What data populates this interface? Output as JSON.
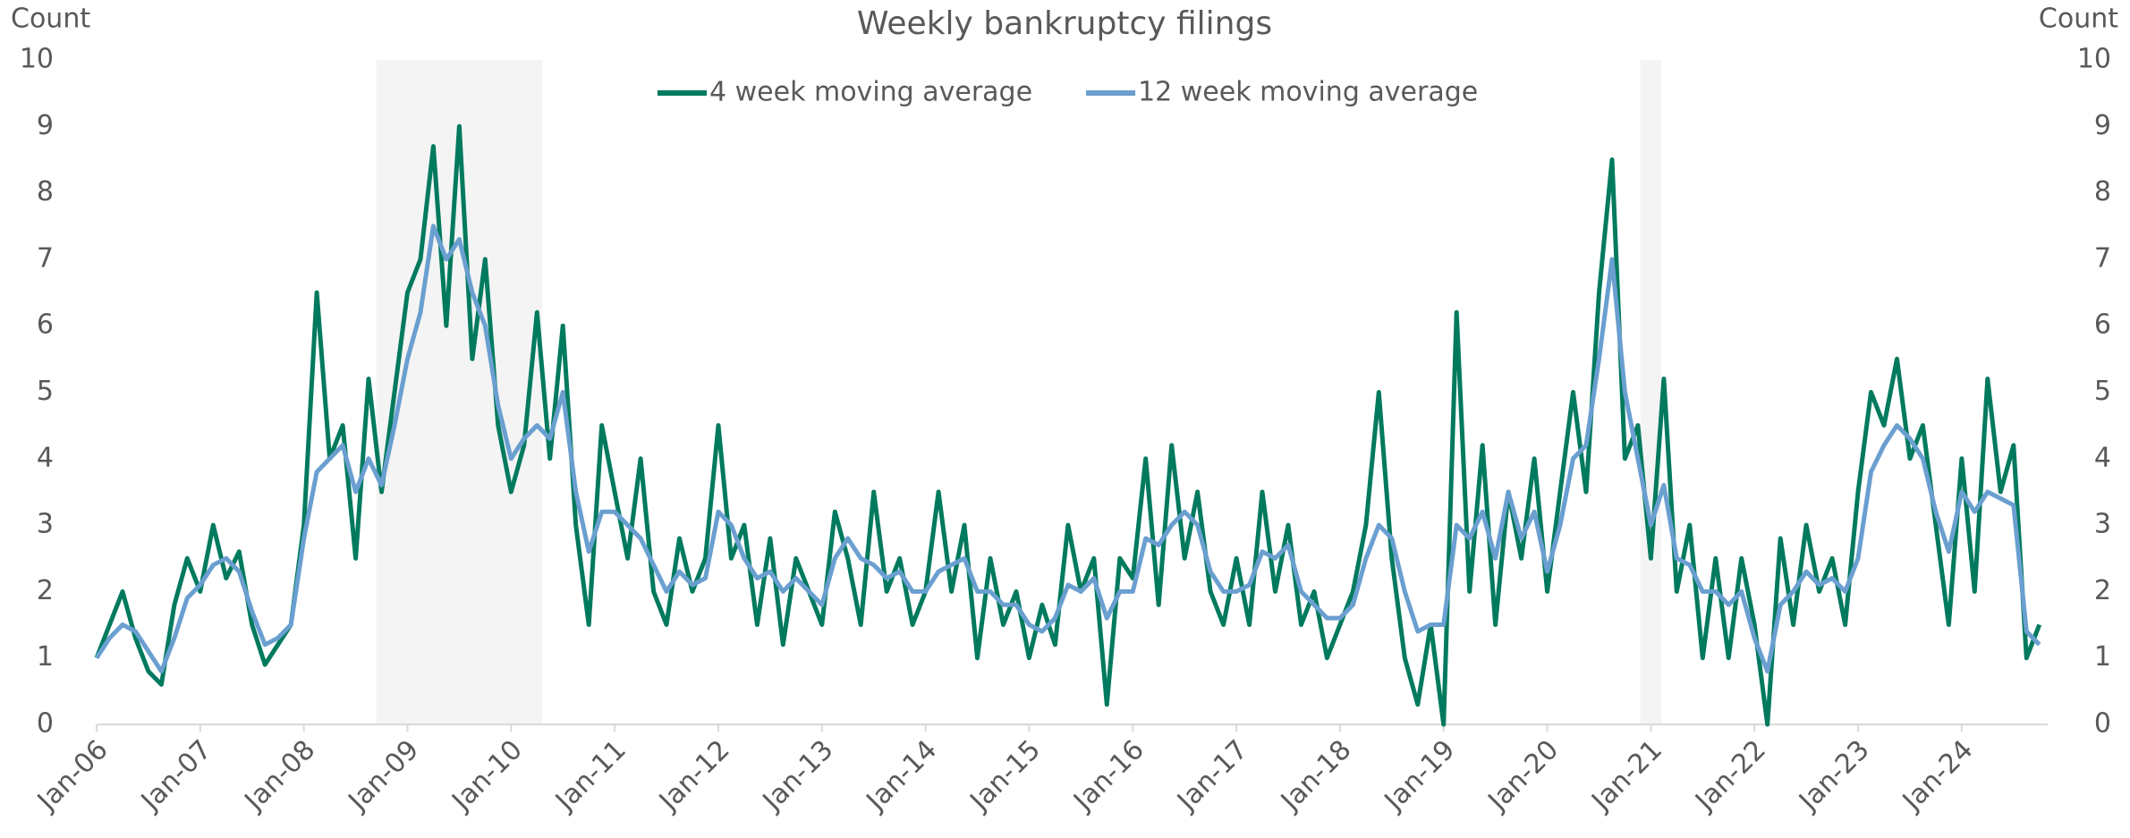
{
  "chart_data": {
    "type": "line",
    "title": "Weekly bankruptcy filings",
    "y_label": "Count",
    "y2_label": "Count",
    "xlim": [
      2006,
      2024.83
    ],
    "xticks": [
      {
        "value": 2006,
        "label": "Jan-06"
      },
      {
        "value": 2007,
        "label": "Jan-07"
      },
      {
        "value": 2008,
        "label": "Jan-08"
      },
      {
        "value": 2009,
        "label": "Jan-09"
      },
      {
        "value": 2010,
        "label": "Jan-10"
      },
      {
        "value": 2011,
        "label": "Jan-11"
      },
      {
        "value": 2012,
        "label": "Jan-12"
      },
      {
        "value": 2013,
        "label": "Jan-13"
      },
      {
        "value": 2014,
        "label": "Jan-14"
      },
      {
        "value": 2015,
        "label": "Jan-15"
      },
      {
        "value": 2016,
        "label": "Jan-16"
      },
      {
        "value": 2017,
        "label": "Jan-17"
      },
      {
        "value": 2018,
        "label": "Jan-18"
      },
      {
        "value": 2019,
        "label": "Jan-19"
      },
      {
        "value": 2020,
        "label": "Jan-20"
      },
      {
        "value": 2021,
        "label": "Jan-21"
      },
      {
        "value": 2022,
        "label": "Jan-22"
      },
      {
        "value": 2023,
        "label": "Jan-23"
      },
      {
        "value": 2024,
        "label": "Jan-24"
      }
    ],
    "ylim": [
      0,
      10
    ],
    "yticks": [
      0,
      1,
      2,
      3,
      4,
      5,
      6,
      7,
      8,
      9,
      10
    ],
    "y2lim": [
      0,
      10
    ],
    "y2ticks": [
      0,
      1,
      2,
      3,
      4,
      5,
      6,
      7,
      8,
      9,
      10
    ],
    "grid": false,
    "legend": "top",
    "shaded_regions": [
      [
        2008.7,
        2010.3
      ],
      [
        2020.9,
        2021.1
      ]
    ],
    "x": [
      2006,
      2006.125,
      2006.25,
      2006.375,
      2006.5,
      2006.625,
      2006.75,
      2006.875,
      2007,
      2007.125,
      2007.25,
      2007.375,
      2007.5,
      2007.625,
      2007.75,
      2007.875,
      2008,
      2008.125,
      2008.25,
      2008.375,
      2008.5,
      2008.625,
      2008.75,
      2008.875,
      2009,
      2009.125,
      2009.25,
      2009.375,
      2009.5,
      2009.625,
      2009.75,
      2009.875,
      2010,
      2010.125,
      2010.25,
      2010.375,
      2010.5,
      2010.625,
      2010.75,
      2010.875,
      2011,
      2011.125,
      2011.25,
      2011.375,
      2011.5,
      2011.625,
      2011.75,
      2011.875,
      2012,
      2012.125,
      2012.25,
      2012.375,
      2012.5,
      2012.625,
      2012.75,
      2012.875,
      2013,
      2013.125,
      2013.25,
      2013.375,
      2013.5,
      2013.625,
      2013.75,
      2013.875,
      2014,
      2014.125,
      2014.25,
      2014.375,
      2014.5,
      2014.625,
      2014.75,
      2014.875,
      2015,
      2015.125,
      2015.25,
      2015.375,
      2015.5,
      2015.625,
      2015.75,
      2015.875,
      2016,
      2016.125,
      2016.25,
      2016.375,
      2016.5,
      2016.625,
      2016.75,
      2016.875,
      2017,
      2017.125,
      2017.25,
      2017.375,
      2017.5,
      2017.625,
      2017.75,
      2017.875,
      2018,
      2018.125,
      2018.25,
      2018.375,
      2018.5,
      2018.625,
      2018.75,
      2018.875,
      2019,
      2019.125,
      2019.25,
      2019.375,
      2019.5,
      2019.625,
      2019.75,
      2019.875,
      2020,
      2020.125,
      2020.25,
      2020.375,
      2020.5,
      2020.625,
      2020.75,
      2020.875,
      2021,
      2021.125,
      2021.25,
      2021.375,
      2021.5,
      2021.625,
      2021.75,
      2021.875,
      2022,
      2022.125,
      2022.25,
      2022.375,
      2022.5,
      2022.625,
      2022.75,
      2022.875,
      2023,
      2023.125,
      2023.25,
      2023.375,
      2023.5,
      2023.625,
      2023.75,
      2023.875,
      2024,
      2024.125,
      2024.25,
      2024.375,
      2024.5,
      2024.625,
      2024.75
    ],
    "series": [
      {
        "name": "4 week moving average",
        "color": "#007a5e",
        "values": [
          1.0,
          1.5,
          2.0,
          1.3,
          0.8,
          0.6,
          1.8,
          2.5,
          2.0,
          3.0,
          2.2,
          2.6,
          1.5,
          0.9,
          1.2,
          1.5,
          3.0,
          6.5,
          4.0,
          4.5,
          2.5,
          5.2,
          3.5,
          5.0,
          6.5,
          7.0,
          8.7,
          6.0,
          9.0,
          5.5,
          7.0,
          4.5,
          3.5,
          4.2,
          6.2,
          4.0,
          6.0,
          3.0,
          1.5,
          4.5,
          3.5,
          2.5,
          4.0,
          2.0,
          1.5,
          2.8,
          2.0,
          2.5,
          4.5,
          2.5,
          3.0,
          1.5,
          2.8,
          1.2,
          2.5,
          2.0,
          1.5,
          3.2,
          2.5,
          1.5,
          3.5,
          2.0,
          2.5,
          1.5,
          2.0,
          3.5,
          2.0,
          3.0,
          1.0,
          2.5,
          1.5,
          2.0,
          1.0,
          1.8,
          1.2,
          3.0,
          2.0,
          2.5,
          0.3,
          2.5,
          2.2,
          4.0,
          1.8,
          4.2,
          2.5,
          3.5,
          2.0,
          1.5,
          2.5,
          1.5,
          3.5,
          2.0,
          3.0,
          1.5,
          2.0,
          1.0,
          1.5,
          2.0,
          3.0,
          5.0,
          2.5,
          1.0,
          0.3,
          1.5,
          0.0,
          6.2,
          2.0,
          4.2,
          1.5,
          3.5,
          2.5,
          4.0,
          2.0,
          3.5,
          5.0,
          3.5,
          6.5,
          8.5,
          4.0,
          4.5,
          2.5,
          5.2,
          2.0,
          3.0,
          1.0,
          2.5,
          1.0,
          2.5,
          1.5,
          0.0,
          2.8,
          1.5,
          3.0,
          2.0,
          2.5,
          1.5,
          3.5,
          5.0,
          4.5,
          5.5,
          4.0,
          4.5,
          3.0,
          1.5,
          4.0,
          2.0,
          5.2,
          3.5,
          4.2,
          1.0,
          1.5
        ]
      },
      {
        "name": "12 week moving average",
        "color": "#6a9fd0",
        "values": [
          1.0,
          1.3,
          1.5,
          1.4,
          1.1,
          0.8,
          1.3,
          1.9,
          2.1,
          2.4,
          2.5,
          2.3,
          1.7,
          1.2,
          1.3,
          1.5,
          2.8,
          3.8,
          4.0,
          4.2,
          3.5,
          4.0,
          3.6,
          4.5,
          5.5,
          6.2,
          7.5,
          7.0,
          7.3,
          6.5,
          6.0,
          4.8,
          4.0,
          4.3,
          4.5,
          4.3,
          5.0,
          3.5,
          2.6,
          3.2,
          3.2,
          3.0,
          2.8,
          2.4,
          2.0,
          2.3,
          2.1,
          2.2,
          3.2,
          3.0,
          2.5,
          2.2,
          2.3,
          2.0,
          2.2,
          2.0,
          1.8,
          2.5,
          2.8,
          2.5,
          2.4,
          2.2,
          2.3,
          2.0,
          2.0,
          2.3,
          2.4,
          2.5,
          2.0,
          2.0,
          1.8,
          1.8,
          1.5,
          1.4,
          1.6,
          2.1,
          2.0,
          2.2,
          1.6,
          2.0,
          2.0,
          2.8,
          2.7,
          3.0,
          3.2,
          3.0,
          2.3,
          2.0,
          2.0,
          2.1,
          2.6,
          2.5,
          2.7,
          2.0,
          1.8,
          1.6,
          1.6,
          1.8,
          2.5,
          3.0,
          2.8,
          2.0,
          1.4,
          1.5,
          1.5,
          3.0,
          2.8,
          3.2,
          2.5,
          3.5,
          2.8,
          3.2,
          2.3,
          3.0,
          4.0,
          4.2,
          5.5,
          7.0,
          5.0,
          4.0,
          3.0,
          3.6,
          2.5,
          2.4,
          2.0,
          2.0,
          1.8,
          2.0,
          1.3,
          0.8,
          1.8,
          2.0,
          2.3,
          2.1,
          2.2,
          2.0,
          2.5,
          3.8,
          4.2,
          4.5,
          4.3,
          4.0,
          3.2,
          2.6,
          3.5,
          3.2,
          3.5,
          3.4,
          3.3,
          1.4,
          1.2
        ]
      }
    ]
  }
}
